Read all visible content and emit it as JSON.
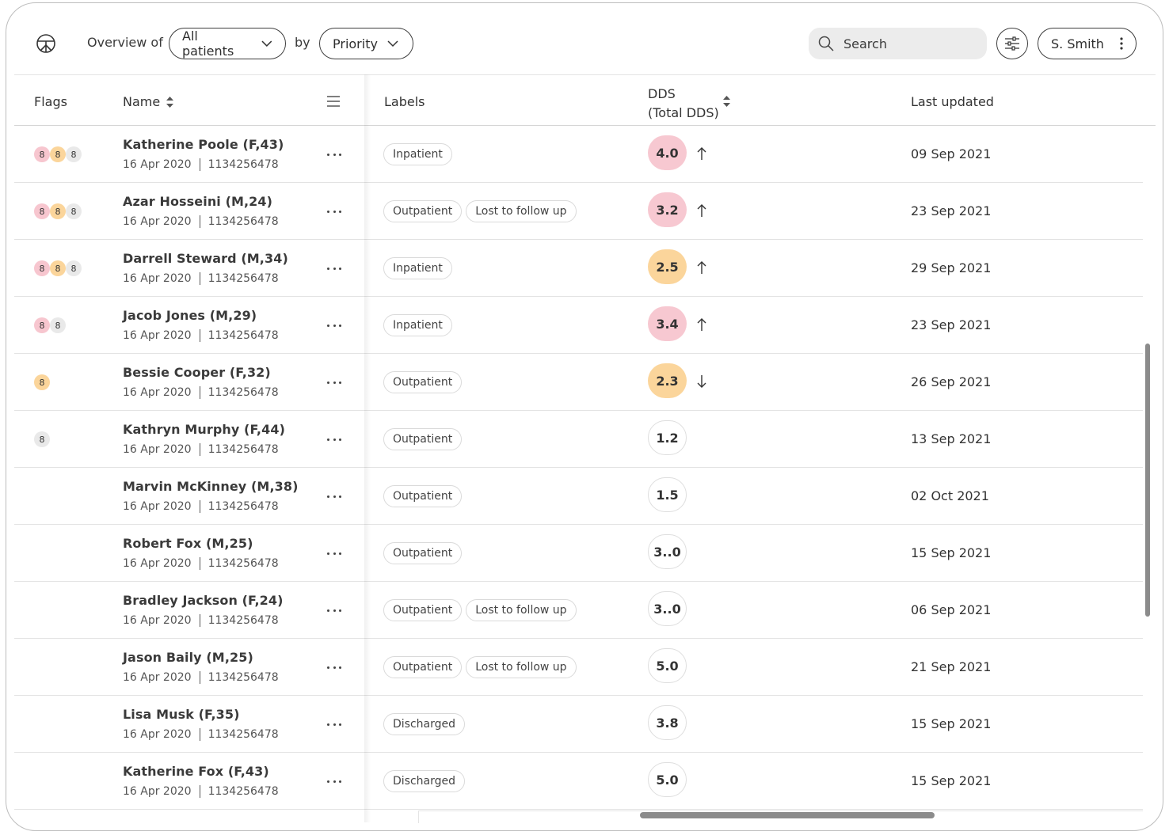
{
  "header": {
    "overview_label": "Overview of",
    "patients_filter": "All patients",
    "by_label": "by",
    "sort_filter": "Priority",
    "search_placeholder": "Search",
    "user_name": "S. Smith"
  },
  "table": {
    "columns": {
      "flags": "Flags",
      "name": "Name",
      "labels": "Labels",
      "dds": "DDS",
      "dds_sub": "(Total DDS)",
      "updated": "Last updated"
    },
    "rows": [
      {
        "name": "Katherine Poole (F,43)",
        "date": "16 Apr 2020",
        "id": "1134256478",
        "flags": [
          {
            "color": "red",
            "value": "8"
          },
          {
            "color": "orange",
            "value": "8"
          },
          {
            "color": "grey",
            "value": "8"
          }
        ],
        "labels": [
          "Inpatient"
        ],
        "dds": "4.0",
        "dds_level": "red",
        "trend": "up",
        "updated": "09 Sep 2021"
      },
      {
        "name": "Azar Hosseini (M,24)",
        "date": "16 Apr 2020",
        "id": "1134256478",
        "flags": [
          {
            "color": "red",
            "value": "8"
          },
          {
            "color": "orange",
            "value": "8"
          },
          {
            "color": "grey",
            "value": "8"
          }
        ],
        "labels": [
          "Outpatient",
          "Lost to follow up"
        ],
        "dds": "3.2",
        "dds_level": "red",
        "trend": "up",
        "updated": "23 Sep 2021"
      },
      {
        "name": "Darrell Steward (M,34)",
        "date": "16 Apr 2020",
        "id": "1134256478",
        "flags": [
          {
            "color": "red",
            "value": "8"
          },
          {
            "color": "orange",
            "value": "8"
          },
          {
            "color": "grey",
            "value": "8"
          }
        ],
        "labels": [
          "Inpatient"
        ],
        "dds": "2.5",
        "dds_level": "orange",
        "trend": "up",
        "updated": "29 Sep 2021"
      },
      {
        "name": "Jacob Jones (M,29)",
        "date": "16 Apr 2020",
        "id": "1134256478",
        "flags": [
          {
            "color": "red",
            "value": "8"
          },
          {
            "color": "grey",
            "value": "8"
          }
        ],
        "labels": [
          "Inpatient"
        ],
        "dds": "3.4",
        "dds_level": "red",
        "trend": "up",
        "updated": "23 Sep 2021"
      },
      {
        "name": "Bessie Cooper (F,32)",
        "date": "16 Apr 2020",
        "id": "1134256478",
        "flags": [
          {
            "color": "orange",
            "value": "8"
          }
        ],
        "labels": [
          "Outpatient"
        ],
        "dds": "2.3",
        "dds_level": "orange",
        "trend": "down",
        "updated": "26 Sep 2021"
      },
      {
        "name": "Kathryn Murphy (F,44)",
        "date": "16 Apr 2020",
        "id": "1134256478",
        "flags": [
          {
            "color": "grey",
            "value": "8"
          }
        ],
        "labels": [
          "Outpatient"
        ],
        "dds": "1.2",
        "dds_level": "plain",
        "trend": "",
        "updated": "13 Sep 2021"
      },
      {
        "name": "Marvin McKinney (M,38)",
        "date": "16 Apr 2020",
        "id": "1134256478",
        "flags": [],
        "labels": [
          "Outpatient"
        ],
        "dds": "1.5",
        "dds_level": "plain",
        "trend": "",
        "updated": "02 Oct 2021"
      },
      {
        "name": "Robert Fox (M,25)",
        "date": "16 Apr 2020",
        "id": "1134256478",
        "flags": [],
        "labels": [
          "Outpatient"
        ],
        "dds": "3..0",
        "dds_level": "plain",
        "trend": "",
        "updated": "15 Sep 2021"
      },
      {
        "name": "Bradley Jackson (F,24)",
        "date": "16 Apr 2020",
        "id": "1134256478",
        "flags": [],
        "labels": [
          "Outpatient",
          "Lost to follow up"
        ],
        "dds": "3..0",
        "dds_level": "plain",
        "trend": "",
        "updated": "06 Sep 2021"
      },
      {
        "name": "Jason Baily (M,25)",
        "date": "16 Apr 2020",
        "id": "1134256478",
        "flags": [],
        "labels": [
          "Outpatient",
          "Lost to follow up"
        ],
        "dds": "5.0",
        "dds_level": "plain",
        "trend": "",
        "updated": "21 Sep 2021"
      },
      {
        "name": "Lisa Musk (F,35)",
        "date": "16 Apr 2020",
        "id": "1134256478",
        "flags": [],
        "labels": [
          "Discharged"
        ],
        "dds": "3.8",
        "dds_level": "plain",
        "trend": "",
        "updated": "15 Sep 2021"
      },
      {
        "name": "Katherine Fox (F,43)",
        "date": "16 Apr 2020",
        "id": "1134256478",
        "flags": [],
        "labels": [
          "Discharged"
        ],
        "dds": "5.0",
        "dds_level": "plain",
        "trend": "",
        "updated": "15 Sep 2021"
      }
    ]
  }
}
